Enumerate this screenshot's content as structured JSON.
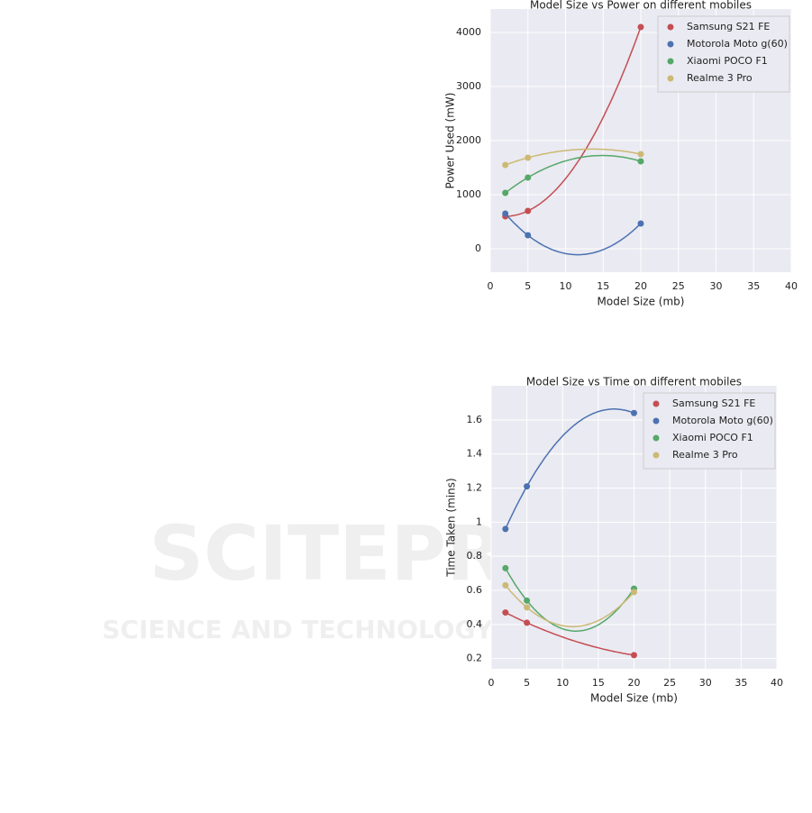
{
  "chart_data": [
    {
      "type": "scatter",
      "fit": "quadratic",
      "title": "Model Size vs Power on different mobiles",
      "x_label": "Model Size (mb)",
      "y_label": "Power Used (mW)",
      "x": [
        2,
        5,
        20
      ],
      "series": [
        {
          "name": "Samsung S21 FE",
          "color": "#c44e52",
          "values": [
            600,
            700,
            4100
          ]
        },
        {
          "name": "Motorola Moto g(60)",
          "color": "#4c72b0",
          "values": [
            650,
            250,
            467
          ]
        },
        {
          "name": "Xiaomi POCO F1",
          "color": "#55a868",
          "values": [
            1033,
            1317,
            1617
          ]
        },
        {
          "name": "Realme 3 Pro",
          "color": "#ccb974",
          "values": [
            1550,
            1683,
            1750
          ]
        }
      ],
      "xlim": [
        0,
        40
      ],
      "xticks": [
        0,
        5,
        10,
        15,
        20,
        25,
        30,
        35,
        40
      ],
      "ylim": [
        -433,
        4433
      ],
      "yticks": [
        0,
        1000,
        2000,
        3000,
        4000
      ],
      "grid": true,
      "legend": "upper right"
    },
    {
      "type": "scatter",
      "fit": "quadratic",
      "title": "Model Size vs Time on different mobiles",
      "x_label": "Model Size (mb)",
      "y_label": "Time Taken (mins)",
      "x": [
        2,
        5,
        20
      ],
      "series": [
        {
          "name": "Samsung S21 FE",
          "color": "#c44e52",
          "values": [
            0.47,
            0.41,
            0.22
          ]
        },
        {
          "name": "Motorola Moto g(60)",
          "color": "#4c72b0",
          "values": [
            0.96,
            1.21,
            1.64
          ]
        },
        {
          "name": "Xiaomi POCO F1",
          "color": "#55a868",
          "values": [
            0.73,
            0.54,
            0.61
          ]
        },
        {
          "name": "Realme 3 Pro",
          "color": "#ccb974",
          "values": [
            0.63,
            0.5,
            0.59
          ]
        }
      ],
      "xlim": [
        0,
        40
      ],
      "xticks": [
        0,
        5,
        10,
        15,
        20,
        25,
        30,
        35,
        40
      ],
      "ylim": [
        0.14,
        1.8
      ],
      "yticks": [
        0.2,
        0.4,
        0.6,
        0.8,
        1.0,
        1.2,
        1.4,
        1.6
      ],
      "grid": true,
      "legend": "upper right"
    }
  ],
  "watermark": {
    "title": "SCITEPRESS",
    "subtitle": "SCIENCE AND TECHNOLOGY PUBLICATIONS"
  }
}
